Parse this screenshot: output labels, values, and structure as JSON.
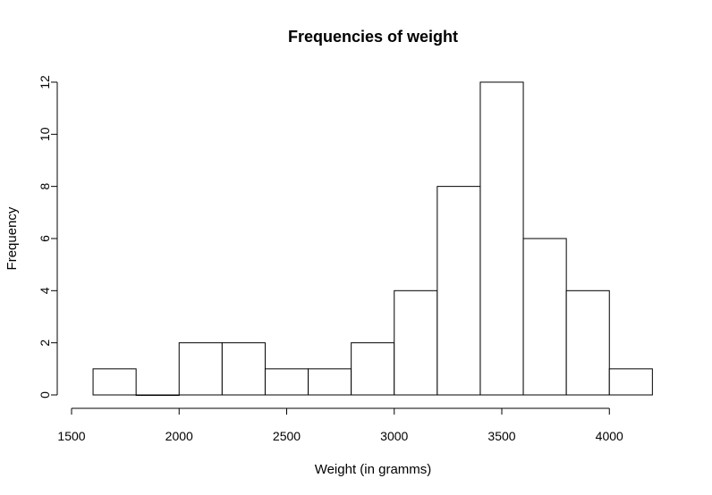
{
  "chart_data": {
    "type": "bar",
    "title": "Frequencies of weight",
    "xlabel": "Weight (in gramms)",
    "ylabel": "Frequency",
    "bins": [
      [
        1600,
        1800
      ],
      [
        1800,
        2000
      ],
      [
        2000,
        2200
      ],
      [
        2200,
        2400
      ],
      [
        2400,
        2600
      ],
      [
        2600,
        2800
      ],
      [
        2800,
        3000
      ],
      [
        3000,
        3200
      ],
      [
        3200,
        3400
      ],
      [
        3400,
        3600
      ],
      [
        3600,
        3800
      ],
      [
        3800,
        4000
      ],
      [
        4000,
        4200
      ]
    ],
    "values": [
      1,
      0,
      2,
      2,
      1,
      1,
      2,
      4,
      8,
      12,
      6,
      4,
      1
    ],
    "xlim": [
      1500,
      4000
    ],
    "ylim": [
      0,
      12
    ],
    "x_ticks": [
      1500,
      2000,
      2500,
      3000,
      3500,
      4000
    ],
    "y_ticks": [
      0,
      2,
      4,
      6,
      8,
      10,
      12
    ],
    "grid": false,
    "bar_fill": "#ffffff",
    "bar_stroke": "#000000"
  }
}
